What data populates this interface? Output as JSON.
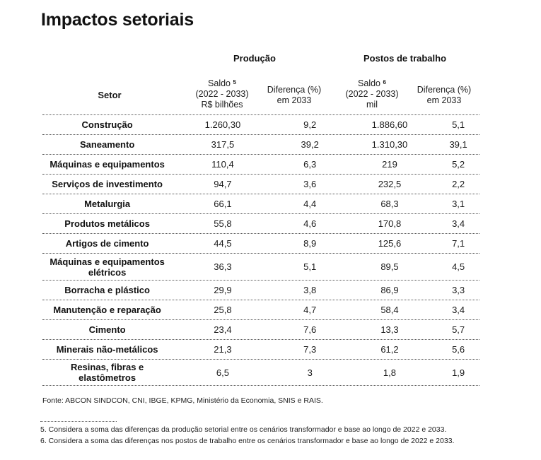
{
  "title": "Impactos setoriais",
  "groups": {
    "producao": "Produção",
    "postos": "Postos de trabalho"
  },
  "headers": {
    "setor": "Setor",
    "saldo_prod": {
      "l1": "Saldo",
      "sup": "5",
      "l2": "(2022 - 2033)",
      "l3": "R$ bilhões"
    },
    "dif_prod": {
      "l1": "Diferença (%)",
      "l2": "em 2033"
    },
    "saldo_post": {
      "l1": "Saldo",
      "sup": "6",
      "l2": "(2022 - 2033)",
      "l3": "mil"
    },
    "dif_post": {
      "l1": "Diferença (%)",
      "l2": "em 2033"
    }
  },
  "rows": [
    {
      "setor": [
        "Construção"
      ],
      "saldo_prod": "1.260,30",
      "dif_prod": "9,2",
      "saldo_post": "1.886,60",
      "dif_post": "5,1"
    },
    {
      "setor": [
        "Saneamento"
      ],
      "saldo_prod": "317,5",
      "dif_prod": "39,2",
      "saldo_post": "1.310,30",
      "dif_post": "39,1"
    },
    {
      "setor": [
        "Máquinas e equipamentos"
      ],
      "saldo_prod": "110,4",
      "dif_prod": "6,3",
      "saldo_post": "219",
      "dif_post": "5,2"
    },
    {
      "setor": [
        "Serviços de investimento"
      ],
      "saldo_prod": "94,7",
      "dif_prod": "3,6",
      "saldo_post": "232,5",
      "dif_post": "2,2"
    },
    {
      "setor": [
        "Metalurgia"
      ],
      "saldo_prod": "66,1",
      "dif_prod": "4,4",
      "saldo_post": "68,3",
      "dif_post": "3,1"
    },
    {
      "setor": [
        "Produtos metálicos"
      ],
      "saldo_prod": "55,8",
      "dif_prod": "4,6",
      "saldo_post": "170,8",
      "dif_post": "3,4"
    },
    {
      "setor": [
        "Artigos de cimento"
      ],
      "saldo_prod": "44,5",
      "dif_prod": "8,9",
      "saldo_post": "125,6",
      "dif_post": "7,1"
    },
    {
      "setor": [
        "Máquinas e equipamentos",
        "elétricos"
      ],
      "saldo_prod": "36,3",
      "dif_prod": "5,1",
      "saldo_post": "89,5",
      "dif_post": "4,5"
    },
    {
      "setor": [
        "Borracha e plástico"
      ],
      "saldo_prod": "29,9",
      "dif_prod": "3,8",
      "saldo_post": "86,9",
      "dif_post": "3,3"
    },
    {
      "setor": [
        "Manutenção e reparação"
      ],
      "saldo_prod": "25,8",
      "dif_prod": "4,7",
      "saldo_post": "58,4",
      "dif_post": "3,4"
    },
    {
      "setor": [
        "Cimento"
      ],
      "saldo_prod": "23,4",
      "dif_prod": "7,6",
      "saldo_post": "13,3",
      "dif_post": "5,7"
    },
    {
      "setor": [
        "Minerais não-metálicos"
      ],
      "saldo_prod": "21,3",
      "dif_prod": "7,3",
      "saldo_post": "61,2",
      "dif_post": "5,6"
    },
    {
      "setor": [
        "Resinas, fibras e",
        "elastômetros"
      ],
      "saldo_prod": "6,5",
      "dif_prod": "3",
      "saldo_post": "1,8",
      "dif_post": "1,9"
    }
  ],
  "source": "Fonte: ABCON SINDCON, CNI, IBGE, KPMG, Ministério da Economia, SNIS e RAIS.",
  "footnotes": [
    "5. Considera a soma das diferenças da produção setorial entre os cenários transformador e base ao longo de 2022 e 2033.",
    "6. Considera a soma das diferenças nos postos de trabalho entre os cenários transformador e base ao longo de 2022 e 2033."
  ]
}
